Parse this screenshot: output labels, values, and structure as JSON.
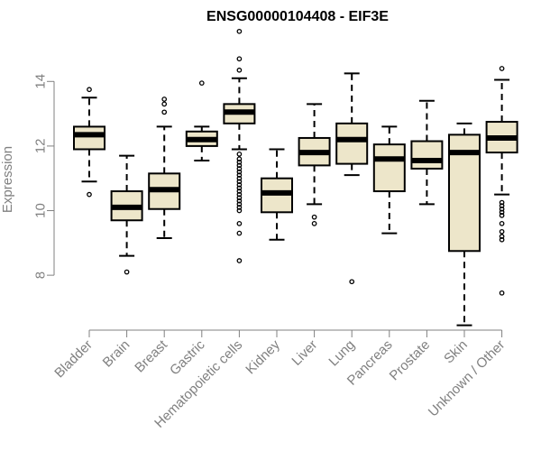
{
  "chart_data": {
    "type": "boxplot",
    "title": "ENSG00000104408 - EIF3E",
    "xlabel": "",
    "ylabel": "Expression",
    "ylim": [
      6.3,
      15.6
    ],
    "yticks": [
      8,
      10,
      12,
      14
    ],
    "grid": false,
    "colors": {
      "box_fill": "#ede6ca",
      "stroke": "#000000",
      "axis": "#808080"
    },
    "categories": [
      "Bladder",
      "Brain",
      "Breast",
      "Gastric",
      "Hematopoietic cells",
      "Kidney",
      "Liver",
      "Lung",
      "Pancreas",
      "Prostate",
      "Skin",
      "Unknown / Other"
    ],
    "boxes": [
      {
        "category": "Bladder",
        "whisker_low": 10.9,
        "q1": 11.9,
        "median": 12.35,
        "q3": 12.6,
        "whisker_high": 13.5,
        "outliers": [
          13.75,
          10.5
        ]
      },
      {
        "category": "Brain",
        "whisker_low": 8.6,
        "q1": 9.7,
        "median": 10.1,
        "q3": 10.6,
        "whisker_high": 11.7,
        "outliers": [
          8.1
        ]
      },
      {
        "category": "Breast",
        "whisker_low": 9.15,
        "q1": 10.05,
        "median": 10.65,
        "q3": 11.15,
        "whisker_high": 12.6,
        "outliers": [
          13.45,
          13.3,
          13.05
        ]
      },
      {
        "category": "Gastric",
        "whisker_low": 11.55,
        "q1": 12.0,
        "median": 12.2,
        "q3": 12.45,
        "whisker_high": 12.6,
        "outliers": [
          13.95
        ]
      },
      {
        "category": "Hematopoietic cells",
        "whisker_low": 11.9,
        "q1": 12.7,
        "median": 13.05,
        "q3": 13.3,
        "whisker_high": 14.1,
        "outliers": [
          15.55,
          14.7,
          14.35,
          11.75,
          11.6,
          11.5,
          11.4,
          11.3,
          11.2,
          11.1,
          11.0,
          10.9,
          10.8,
          10.7,
          10.6,
          10.5,
          10.4,
          10.3,
          10.2,
          10.1,
          10.0,
          9.6,
          9.3,
          8.45
        ]
      },
      {
        "category": "Kidney",
        "whisker_low": 9.1,
        "q1": 9.95,
        "median": 10.55,
        "q3": 11.0,
        "whisker_high": 11.9,
        "outliers": []
      },
      {
        "category": "Liver",
        "whisker_low": 10.2,
        "q1": 11.4,
        "median": 11.8,
        "q3": 12.25,
        "whisker_high": 13.3,
        "outliers": [
          9.8,
          9.6
        ]
      },
      {
        "category": "Lung",
        "whisker_low": 11.1,
        "q1": 11.45,
        "median": 12.2,
        "q3": 12.7,
        "whisker_high": 14.25,
        "outliers": [
          7.8
        ]
      },
      {
        "category": "Pancreas",
        "whisker_low": 9.3,
        "q1": 10.6,
        "median": 11.6,
        "q3": 12.05,
        "whisker_high": 12.6,
        "outliers": []
      },
      {
        "category": "Prostate",
        "whisker_low": 10.2,
        "q1": 11.3,
        "median": 11.55,
        "q3": 12.15,
        "whisker_high": 13.4,
        "outliers": []
      },
      {
        "category": "Skin",
        "whisker_low": 6.45,
        "q1": 8.75,
        "median": 11.8,
        "q3": 12.35,
        "whisker_high": 12.7,
        "outliers": []
      },
      {
        "category": "Unknown / Other",
        "whisker_low": 10.5,
        "q1": 11.8,
        "median": 12.25,
        "q3": 12.75,
        "whisker_high": 14.05,
        "outliers": [
          14.4,
          10.25,
          10.15,
          10.05,
          9.95,
          9.85,
          9.6,
          9.35,
          9.2,
          9.1,
          7.45
        ]
      }
    ]
  }
}
